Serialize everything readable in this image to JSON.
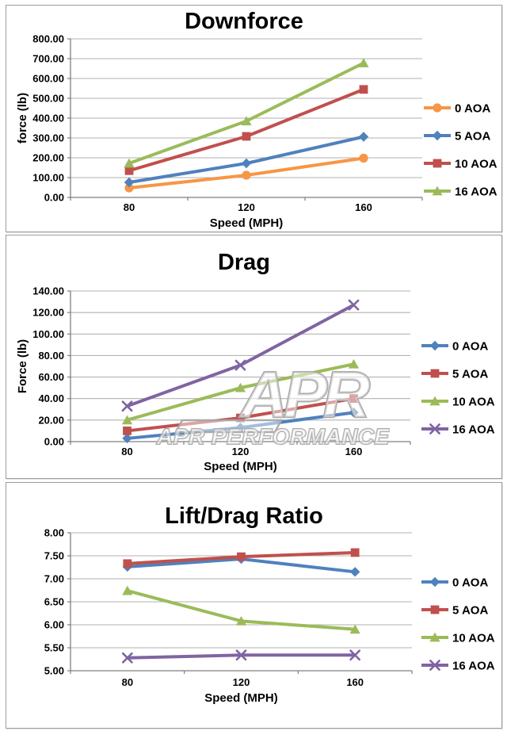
{
  "page": {
    "background": "#ffffff"
  },
  "watermark": {
    "logo_text": "APR",
    "label": "APR PERFORMANCE"
  },
  "chart_data": [
    {
      "type": "line",
      "title": "Downforce",
      "xlabel": "Speed (MPH)",
      "ylabel": "force (lb)",
      "categories": [
        "80",
        "120",
        "160"
      ],
      "ylim": [
        0,
        800
      ],
      "y_step": 100,
      "grid": true,
      "legend_position": "right",
      "series": [
        {
          "name": "0 AOA",
          "marker": "circle",
          "color": "#F79646",
          "values": [
            48,
            112,
            198
          ]
        },
        {
          "name": "5 AOA",
          "marker": "diamond",
          "color": "#4F81BD",
          "values": [
            76,
            172,
            306
          ]
        },
        {
          "name": "10 AOA",
          "marker": "square",
          "color": "#C0504D",
          "values": [
            135,
            308,
            545
          ]
        },
        {
          "name": "16 AOA",
          "marker": "triangle",
          "color": "#9BBB59",
          "values": [
            172,
            385,
            678
          ]
        }
      ]
    },
    {
      "type": "line",
      "title": "Drag",
      "xlabel": "Speed (MPH)",
      "ylabel": "Force (lb)",
      "categories": [
        "80",
        "120",
        "160"
      ],
      "ylim": [
        0,
        140
      ],
      "y_step": 20,
      "grid": true,
      "legend_position": "right",
      "series": [
        {
          "name": "0 AOA",
          "marker": "diamond",
          "color": "#4F81BD",
          "values": [
            3,
            13,
            27
          ]
        },
        {
          "name": "5 AOA",
          "marker": "square",
          "color": "#C0504D",
          "values": [
            10,
            22,
            40
          ]
        },
        {
          "name": "10 AOA",
          "marker": "triangle",
          "color": "#9BBB59",
          "values": [
            20,
            50,
            72
          ]
        },
        {
          "name": "16 AOA",
          "marker": "x",
          "color": "#8064A2",
          "values": [
            33,
            71,
            127
          ]
        }
      ]
    },
    {
      "type": "line",
      "title": "Lift/Drag Ratio",
      "xlabel": "Speed (MPH)",
      "ylabel": "",
      "categories": [
        "80",
        "120",
        "160"
      ],
      "ylim": [
        5,
        8
      ],
      "y_step": 0.5,
      "grid": true,
      "legend_position": "right",
      "series": [
        {
          "name": "0 AOA",
          "marker": "diamond",
          "color": "#4F81BD",
          "values": [
            7.26,
            7.43,
            7.15
          ]
        },
        {
          "name": "5 AOA",
          "marker": "square",
          "color": "#C0504D",
          "values": [
            7.33,
            7.48,
            7.57
          ]
        },
        {
          "name": "10 AOA",
          "marker": "triangle",
          "color": "#9BBB59",
          "values": [
            6.74,
            6.08,
            5.9
          ]
        },
        {
          "name": "16 AOA",
          "marker": "x",
          "color": "#8064A2",
          "values": [
            5.28,
            5.34,
            5.34
          ]
        }
      ]
    }
  ]
}
